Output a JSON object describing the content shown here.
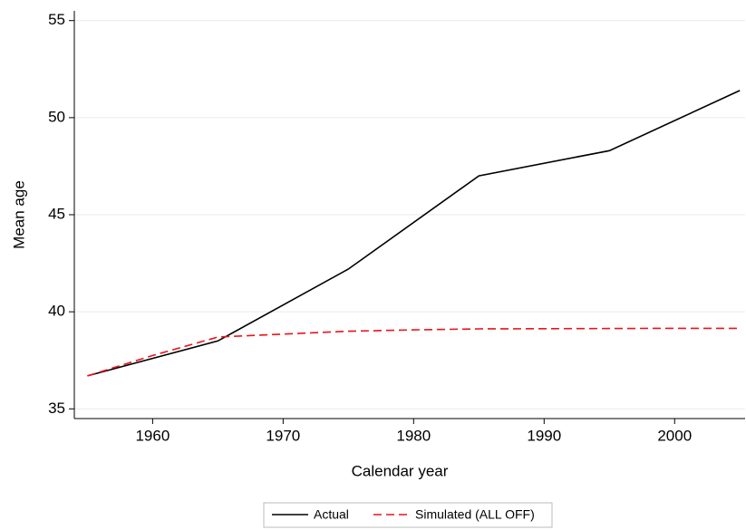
{
  "chart_data": {
    "type": "line",
    "xlabel": "Calendar year",
    "ylabel": "Mean age",
    "xlim": [
      1954,
      2005.4
    ],
    "ylim": [
      34.5,
      55.5
    ],
    "xticks": [
      1960,
      1970,
      1980,
      1990,
      2000
    ],
    "yticks": [
      35,
      40,
      45,
      50,
      55
    ],
    "grid": true,
    "legend": "bottom",
    "series": [
      {
        "name": "Actual",
        "color": "#000000",
        "dash": false,
        "x": [
          1955,
          1965,
          1975,
          1985,
          1995,
          2005
        ],
        "values": [
          36.7,
          38.5,
          42.2,
          47.0,
          48.3,
          51.4
        ]
      },
      {
        "name": "Simulated (ALL OFF)",
        "color": "#e8141c",
        "dash": true,
        "x": [
          1955,
          1960,
          1965,
          1970,
          1975,
          1980,
          1985,
          1990,
          1995,
          2000,
          2005
        ],
        "values": [
          36.7,
          37.75,
          38.7,
          38.85,
          39.0,
          39.07,
          39.12,
          39.13,
          39.14,
          39.15,
          39.15
        ]
      }
    ]
  }
}
